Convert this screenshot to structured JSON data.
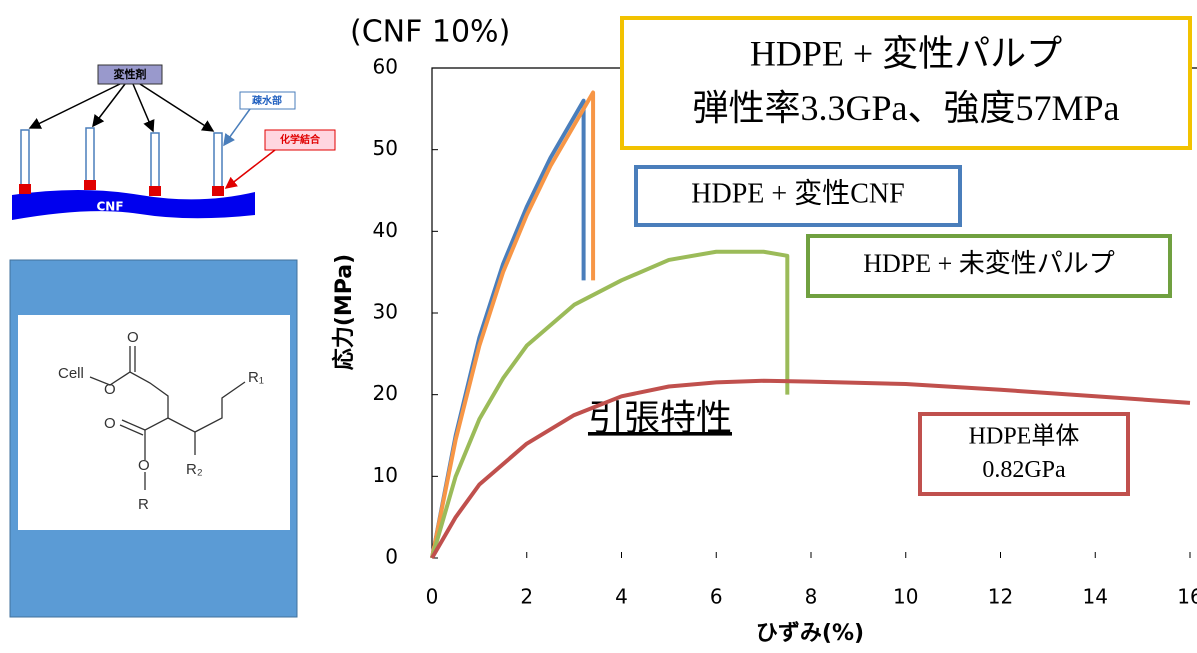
{
  "chart_data": {
    "type": "line",
    "title": "(CNF 10%)",
    "center_label": "引張特性",
    "x_label": "ひずみ(%)",
    "y_label": "応力(MPa)",
    "xlim": [
      0,
      16
    ],
    "xticks": [
      0,
      2,
      4,
      6,
      8,
      10,
      12,
      14,
      16
    ],
    "ylim": [
      0,
      60
    ],
    "yticks": [
      0,
      10,
      20,
      30,
      40,
      50,
      60
    ],
    "series": [
      {
        "name": "HDPE + 変性CNF",
        "color": "#4a7ebb",
        "x": [
          0,
          0.5,
          1,
          1.5,
          2,
          2.5,
          3,
          3.2,
          3.2
        ],
        "values": [
          0,
          15,
          27,
          36,
          43,
          49,
          54,
          56,
          34
        ]
      },
      {
        "name": "HDPE + 変性パルプ",
        "note": "弾性率3.3GPa、強度57MPa",
        "color": "#f79646",
        "x": [
          0,
          0.5,
          1,
          1.5,
          2,
          2.5,
          3,
          3.4,
          3.4
        ],
        "values": [
          0,
          14.5,
          26,
          35,
          42,
          48,
          53,
          57,
          34
        ]
      },
      {
        "name": "HDPE + 未変性パルプ",
        "color": "#9bbb59",
        "x": [
          0,
          0.5,
          1,
          1.5,
          2,
          3,
          4,
          5,
          6,
          7,
          7.5,
          7.5
        ],
        "values": [
          0,
          10,
          17,
          22,
          26,
          31,
          34,
          36.5,
          37.5,
          37.5,
          37,
          20
        ]
      },
      {
        "name": "HDPE単体",
        "note": "0.82GPa",
        "color": "#c0504d",
        "x": [
          0,
          0.5,
          1,
          2,
          3,
          4,
          5,
          6,
          7,
          8,
          10,
          12,
          14,
          16
        ],
        "values": [
          0,
          5,
          9,
          14,
          17.5,
          19.8,
          21,
          21.5,
          21.7,
          21.6,
          21.3,
          20.6,
          19.8,
          19
        ]
      }
    ]
  },
  "diagram": {
    "agent": "変性剤",
    "hydrophobic": "疎水部",
    "bond": "化学結合",
    "base": "CNF"
  },
  "molecule": {
    "cell": "Cell",
    "o1": "O",
    "o2": "O",
    "o3": "O",
    "o4": "O",
    "r1": "R₁",
    "r2": "R₂",
    "r": "R"
  }
}
